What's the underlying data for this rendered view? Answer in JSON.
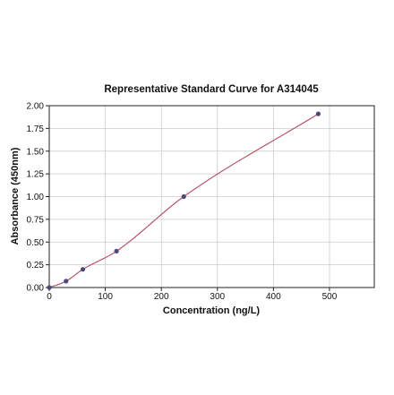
{
  "chart_data": {
    "type": "scatter",
    "title": "Representative Standard Curve for A314045",
    "xlabel": "Concentration (ng/L)",
    "ylabel": "Absorbance (450nm)",
    "xlim": [
      0,
      580
    ],
    "ylim": [
      0,
      2.0
    ],
    "xticks": [
      0,
      100,
      200,
      300,
      400,
      500
    ],
    "xtick_labels": [
      "0",
      "100",
      "200",
      "300",
      "400",
      "500"
    ],
    "yticks": [
      0,
      0.25,
      0.5,
      0.75,
      1.0,
      1.25,
      1.5,
      1.75,
      2.0
    ],
    "ytick_labels": [
      "0.00",
      "0.25",
      "0.50",
      "0.75",
      "1.00",
      "1.25",
      "1.50",
      "1.75",
      "2.00"
    ],
    "grid": true,
    "series": [
      {
        "points": [
          {
            "x": 0,
            "y": 0.0
          },
          {
            "x": 30,
            "y": 0.07
          },
          {
            "x": 60,
            "y": 0.2
          },
          {
            "x": 120,
            "y": 0.4
          },
          {
            "x": 240,
            "y": 1.0
          },
          {
            "x": 480,
            "y": 1.91
          }
        ],
        "marker_color": "#4a4a7a",
        "fit_curve_color": "#b5475e"
      }
    ]
  }
}
